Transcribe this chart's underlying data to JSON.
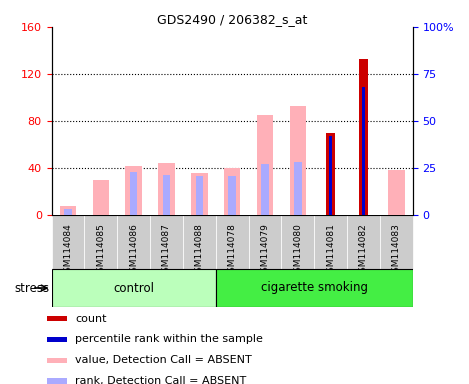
{
  "title": "GDS2490 / 206382_s_at",
  "samples": [
    "GSM114084",
    "GSM114085",
    "GSM114086",
    "GSM114087",
    "GSM114088",
    "GSM114078",
    "GSM114079",
    "GSM114080",
    "GSM114081",
    "GSM114082",
    "GSM114083"
  ],
  "value_absent": [
    8,
    30,
    42,
    44,
    36,
    40,
    85,
    93,
    null,
    null,
    38
  ],
  "rank_absent": [
    5,
    null,
    37,
    34,
    33,
    33,
    43,
    45,
    null,
    null,
    null
  ],
  "count": [
    null,
    null,
    null,
    null,
    null,
    null,
    null,
    null,
    70,
    133,
    null
  ],
  "percentile_rank": [
    null,
    null,
    null,
    null,
    null,
    null,
    null,
    null,
    42,
    68,
    null
  ],
  "ylim_left": [
    0,
    160
  ],
  "ylim_right": [
    0,
    100
  ],
  "yticks_left": [
    0,
    40,
    80,
    120,
    160
  ],
  "yticks_right": [
    0,
    25,
    50,
    75,
    100
  ],
  "ytick_labels_right": [
    "0",
    "25",
    "50",
    "75",
    "100%"
  ],
  "color_value_absent": "#FFB0B8",
  "color_rank_absent": "#AAAAFF",
  "color_count": "#CC0000",
  "color_percentile": "#0000CC",
  "bg_color_tick": "#D0D0D0",
  "control_color": "#BBFFBB",
  "smoking_color": "#44EE44",
  "stress_label": "stress",
  "group_label_control": "control",
  "group_label_smoking": "cigarette smoking",
  "n_control": 5,
  "legend_items": [
    {
      "color": "#CC0000",
      "label": "count"
    },
    {
      "color": "#0000CC",
      "label": "percentile rank within the sample"
    },
    {
      "color": "#FFB0B8",
      "label": "value, Detection Call = ABSENT"
    },
    {
      "color": "#AAAAFF",
      "label": "rank, Detection Call = ABSENT"
    }
  ]
}
